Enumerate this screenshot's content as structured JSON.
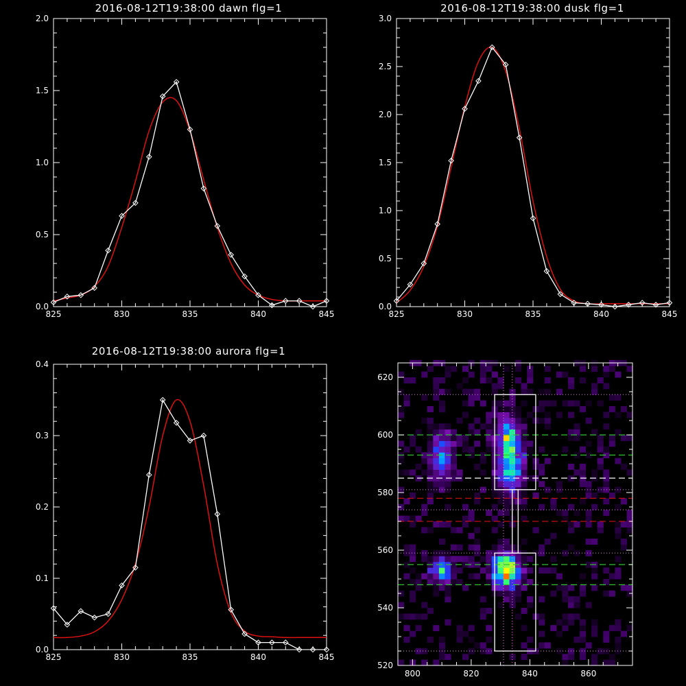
{
  "chart_data": [
    {
      "type": "line",
      "title": "2016-08-12T19:38:00 dawn flg=1",
      "xlim": [
        825,
        845
      ],
      "ylim": [
        0,
        2
      ],
      "xticks": [
        "825",
        "830",
        "835",
        "840",
        "845"
      ],
      "yticks": [
        "0.0",
        "0.5",
        "1.0",
        "1.5",
        "2.0"
      ],
      "ytick_values": [
        0,
        0.5,
        1.0,
        1.5,
        2.0
      ],
      "series": [
        {
          "kind": "data",
          "color": "#ffffff",
          "marker": "diamond",
          "x": [
            825,
            826,
            827,
            828,
            829,
            830,
            831,
            832,
            833,
            834,
            835,
            836,
            837,
            838,
            839,
            840,
            841,
            842,
            843,
            844,
            845
          ],
          "y": [
            0.03,
            0.07,
            0.08,
            0.13,
            0.39,
            0.63,
            0.72,
            1.04,
            1.46,
            1.56,
            1.23,
            0.82,
            0.56,
            0.36,
            0.21,
            0.08,
            0.01,
            0.04,
            0.04,
            0.0,
            0.04
          ]
        },
        {
          "kind": "fit",
          "color": "#dd1111",
          "x": [
            825,
            826,
            827,
            828,
            829,
            830,
            831,
            832,
            833,
            834,
            835,
            836,
            837,
            838,
            839,
            840,
            841,
            842,
            843,
            844,
            845
          ],
          "y": [
            0.04,
            0.06,
            0.08,
            0.14,
            0.28,
            0.55,
            0.87,
            1.22,
            1.42,
            1.43,
            1.22,
            0.88,
            0.55,
            0.3,
            0.15,
            0.08,
            0.05,
            0.04,
            0.04,
            0.04,
            0.04
          ]
        }
      ]
    },
    {
      "type": "line",
      "title": "2016-08-12T19:38:00 dusk flg=1",
      "xlim": [
        825,
        845
      ],
      "ylim": [
        0,
        3
      ],
      "xticks": [
        "825",
        "830",
        "835",
        "840",
        "845"
      ],
      "yticks": [
        "0.0",
        "0.5",
        "1.0",
        "1.5",
        "2.0",
        "2.5",
        "3.0"
      ],
      "ytick_values": [
        0,
        0.5,
        1.0,
        1.5,
        2.0,
        2.5,
        3.0
      ],
      "series": [
        {
          "kind": "data",
          "color": "#ffffff",
          "marker": "diamond",
          "x": [
            825,
            826,
            827,
            828,
            829,
            830,
            831,
            832,
            833,
            834,
            835,
            836,
            837,
            838,
            839,
            840,
            841,
            842,
            843,
            844,
            845
          ],
          "y": [
            0.06,
            0.23,
            0.45,
            0.86,
            1.52,
            2.06,
            2.35,
            2.7,
            2.52,
            1.76,
            0.92,
            0.37,
            0.13,
            0.04,
            0.03,
            0.02,
            0.0,
            0.02,
            0.04,
            0.02,
            0.04
          ]
        },
        {
          "kind": "fit",
          "color": "#dd1111",
          "x": [
            825,
            826,
            827,
            828,
            829,
            830,
            831,
            832,
            833,
            834,
            835,
            836,
            837,
            838,
            839,
            840,
            841,
            842,
            843,
            844,
            845
          ],
          "y": [
            0.04,
            0.17,
            0.42,
            0.84,
            1.45,
            2.08,
            2.55,
            2.7,
            2.45,
            1.85,
            1.1,
            0.52,
            0.18,
            0.06,
            0.03,
            0.03,
            0.03,
            0.03,
            0.03,
            0.03,
            0.03
          ]
        }
      ]
    },
    {
      "type": "line",
      "title": "2016-08-12T19:38:00 aurora flg=1",
      "xlim": [
        825,
        845
      ],
      "ylim": [
        0,
        0.4
      ],
      "xticks": [
        "825",
        "830",
        "835",
        "840",
        "845"
      ],
      "yticks": [
        "0.0",
        "0.1",
        "0.2",
        "0.3",
        "0.4"
      ],
      "ytick_values": [
        0,
        0.1,
        0.2,
        0.3,
        0.4
      ],
      "series": [
        {
          "kind": "data",
          "color": "#ffffff",
          "marker": "diamond",
          "x": [
            825,
            826,
            827,
            828,
            829,
            830,
            831,
            832,
            833,
            834,
            835,
            836,
            837,
            838,
            839,
            840,
            841,
            842,
            843,
            844,
            845
          ],
          "y": [
            0.058,
            0.035,
            0.054,
            0.045,
            0.05,
            0.09,
            0.115,
            0.245,
            0.35,
            0.318,
            0.293,
            0.3,
            0.19,
            0.056,
            0.022,
            0.01,
            0.01,
            0.01,
            0.0,
            0.0,
            0.0
          ]
        },
        {
          "kind": "fit",
          "color": "#dd1111",
          "x": [
            825,
            826,
            827,
            828,
            829,
            830,
            831,
            832,
            833,
            834,
            835,
            836,
            837,
            838,
            839,
            840,
            841,
            842,
            843,
            844,
            845
          ],
          "y": [
            0.017,
            0.017,
            0.019,
            0.025,
            0.04,
            0.07,
            0.12,
            0.2,
            0.3,
            0.35,
            0.32,
            0.23,
            0.12,
            0.052,
            0.026,
            0.019,
            0.018,
            0.017,
            0.017,
            0.017,
            0.017
          ]
        }
      ]
    },
    {
      "type": "heatmap",
      "xlim": [
        795,
        875
      ],
      "ylim": [
        520,
        625
      ],
      "xticks": [
        "800",
        "820",
        "840",
        "860"
      ],
      "yticks": [
        "520",
        "540",
        "560",
        "580",
        "600",
        "620"
      ],
      "tick_x_values": [
        800,
        820,
        840,
        860
      ],
      "tick_y_values": [
        520,
        540,
        560,
        580,
        600,
        620
      ],
      "colormap": [
        "#000000",
        "#3a0060",
        "#7a10b0",
        "#2040ff",
        "#00c0ff",
        "#20ff80",
        "#ffff00",
        "#ff2000"
      ],
      "blobs": [
        {
          "x": 810,
          "y": 592,
          "sx": 2.5,
          "sy": 6,
          "peak": 0.45
        },
        {
          "x": 833,
          "y": 592,
          "sx": 3,
          "sy": 8,
          "peak": 0.6
        },
        {
          "x": 810,
          "y": 553,
          "sx": 2.5,
          "sy": 3,
          "peak": 0.55
        },
        {
          "x": 832,
          "y": 553,
          "sx": 3,
          "sy": 4,
          "peak": 1.0
        },
        {
          "x": 833,
          "y": 600,
          "sx": 2,
          "sy": 3,
          "peak": 0.35
        }
      ],
      "boxes": [
        {
          "x0": 828,
          "x1": 842,
          "y0": 581,
          "y1": 614
        },
        {
          "x0": 828,
          "x1": 842,
          "y0": 525,
          "y1": 559
        }
      ],
      "connector": {
        "x0": 834,
        "x1": 836,
        "y0": 559,
        "y1": 581
      },
      "hlines": [
        {
          "y": 600,
          "color": "#30c030",
          "style": "dashed"
        },
        {
          "y": 593,
          "color": "#30c030",
          "style": "dashed"
        },
        {
          "y": 585,
          "color": "#ffffff",
          "style": "dashed"
        },
        {
          "y": 578,
          "color": "#c01010",
          "style": "dashed"
        },
        {
          "y": 570,
          "color": "#c01010",
          "style": "dashed"
        },
        {
          "y": 555,
          "color": "#30c030",
          "style": "dashed"
        },
        {
          "y": 548,
          "color": "#30c030",
          "style": "dashed"
        },
        {
          "y": 614,
          "color": "#c080c0",
          "style": "dotted"
        },
        {
          "y": 581,
          "color": "#c080c0",
          "style": "dotted"
        },
        {
          "y": 574,
          "color": "#c080c0",
          "style": "dotted"
        },
        {
          "y": 559,
          "color": "#c080c0",
          "style": "dotted"
        },
        {
          "y": 525,
          "color": "#c080c0",
          "style": "dotted"
        }
      ],
      "vlines": [
        {
          "x": 831,
          "color": "#e060e0",
          "style": "dotted"
        },
        {
          "x": 834,
          "color": "#e060e0",
          "style": "dotted"
        }
      ]
    }
  ]
}
